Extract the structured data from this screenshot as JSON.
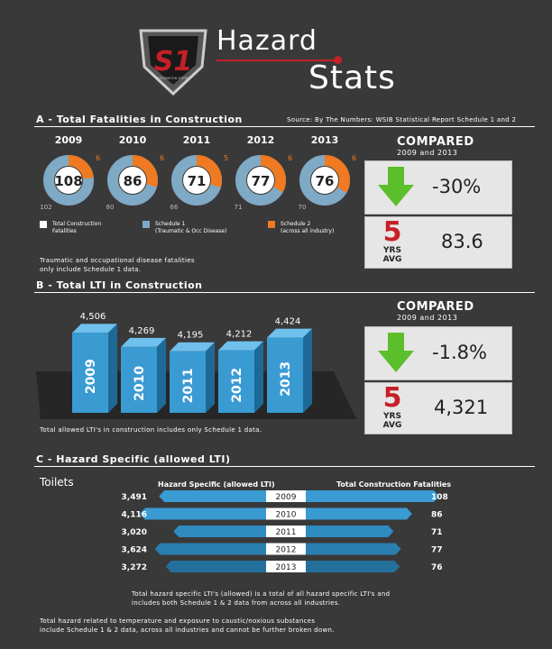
{
  "header": {
    "logo_text": "S1",
    "logo_sub": "INTEGRATION SYSTEM",
    "title_line1": "Hazard",
    "title_line2": "Stats"
  },
  "colors": {
    "background": "#393939",
    "donut_blue": "#7fa9c4",
    "donut_orange": "#f07a21",
    "red": "#c62027",
    "bar_blue": "#3a9bd3",
    "bar_side": "#1d6a98",
    "arrow_green": "#5bbf2b"
  },
  "section_a": {
    "title": "A - Total Fatalities in Construction",
    "source": "Source: By The Numbers: WSIB Statistical Report Schedule 1 and 2",
    "legend": [
      {
        "label_line1": "Total Construction",
        "label_line2": "Fatalities",
        "color": "#ffffff"
      },
      {
        "label_line1": "Schedule 1",
        "label_line2": "(Traumatic & Occ Disease)",
        "color": "#7fa9c4"
      },
      {
        "label_line1": "Schedule 2",
        "label_line2": "(across all industry)",
        "color": "#f07a21"
      }
    ],
    "note_line1": "Traumatic and occupational disease fatalities",
    "note_line2": "only include Schedule 1 data.",
    "compared": {
      "title": "COMPARED",
      "sub": "2009 and 2013",
      "change": "-30%",
      "avg_big": "5",
      "avg_yrs": "YRS",
      "avg_avg": "AVG",
      "avg_value": "83.6"
    }
  },
  "section_b": {
    "title": "B - Total LTI in Construction",
    "note": "Total allowed LTI's in construction includes only Schedule 1 data.",
    "compared": {
      "title": "COMPARED",
      "sub": "2009 and 2013",
      "change": "-1.8%",
      "avg_big": "5",
      "avg_yrs": "YRS",
      "avg_avg": "AVG",
      "avg_value": "4,321"
    }
  },
  "section_c": {
    "title": "C - Hazard Specific (allowed LTI)",
    "side_label": "Toilets",
    "left_header": "Hazard Specific (allowed LTI)",
    "right_header": "Total Construction Fatalities",
    "note_line1": "Total hazard specific LTI's (allowed) is a total of all hazard specific LTI's and",
    "note_line2": "includes both Schedule 1 & 2 data from across all industries.",
    "footer_line1": "Total hazard related to temperature and exposure to caustic/noxious substances",
    "footer_line2": "include Schedule 1 & 2 data, across all industries and cannot be further broken down."
  },
  "chart_data": [
    {
      "type": "donut",
      "title": "",
      "categories": [
        "2009",
        "2010",
        "2011",
        "2012",
        "2013"
      ],
      "series": [
        {
          "name": "Total Construction Fatalities",
          "values": [
            108,
            86,
            71,
            77,
            76
          ]
        },
        {
          "name": "Schedule 1",
          "values": [
            102,
            80,
            66,
            71,
            70
          ]
        },
        {
          "name": "Schedule 2",
          "values": [
            6,
            6,
            5,
            6,
            6
          ]
        }
      ]
    },
    {
      "type": "bar",
      "title": "",
      "categories": [
        "2009",
        "2010",
        "2011",
        "2012",
        "2013"
      ],
      "values": [
        4506,
        4269,
        4195,
        4212,
        4424
      ],
      "value_labels": [
        "4,506",
        "4,269",
        "4,195",
        "4,212",
        "4,424"
      ],
      "ylim": [
        0,
        4600
      ]
    },
    {
      "type": "bar",
      "title": "",
      "orientation": "horizontal-diverging",
      "categories": [
        "2009",
        "2010",
        "2011",
        "2012",
        "2013"
      ],
      "series": [
        {
          "name": "Hazard Specific (allowed LTI)",
          "values": [
            3491,
            4116,
            3020,
            3624,
            3272
          ],
          "labels": [
            "3,491",
            "4,116",
            "3,020",
            "3,624",
            "3,272"
          ]
        },
        {
          "name": "Total Construction Fatalities",
          "values": [
            108,
            86,
            71,
            77,
            76
          ]
        }
      ]
    }
  ]
}
